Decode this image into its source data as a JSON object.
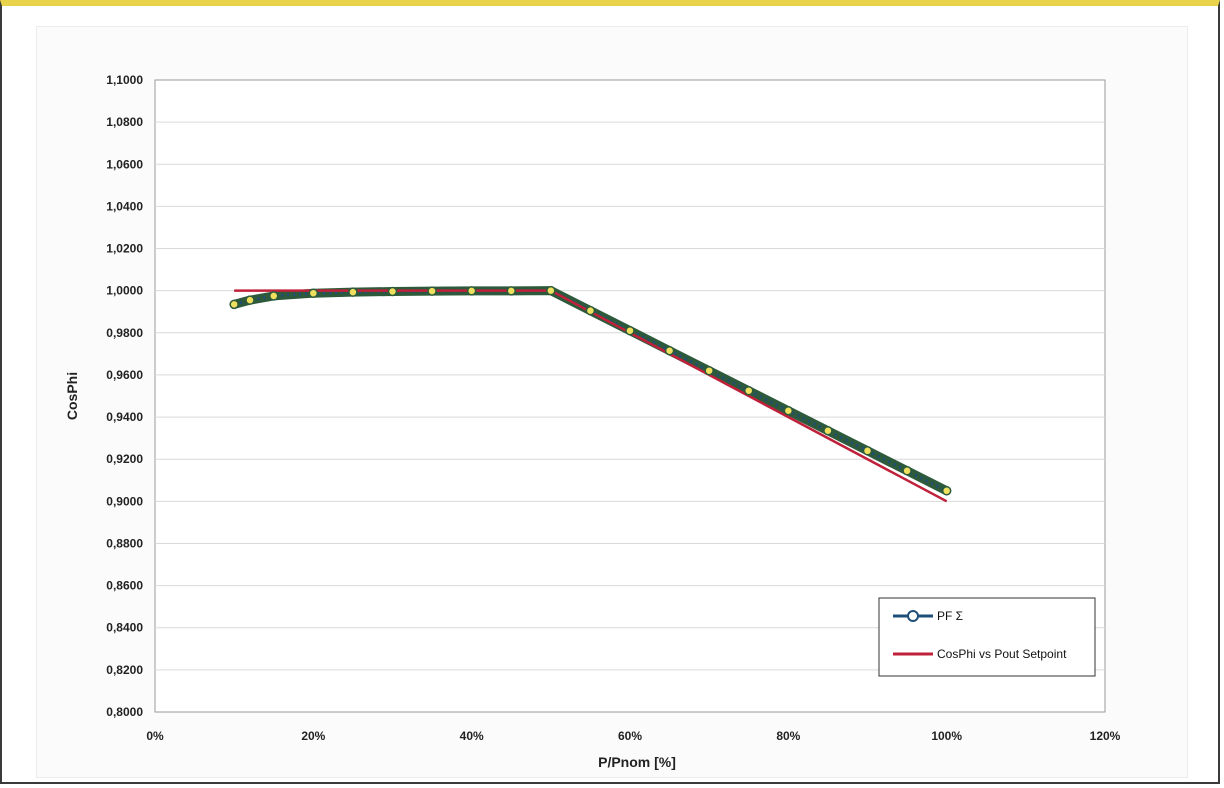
{
  "chart_data": {
    "type": "line",
    "xlabel": "P/Pnom [%]",
    "ylabel": "CosPhi",
    "xlim": [
      0,
      120
    ],
    "ylim": [
      0.8,
      1.1
    ],
    "x_ticks": [
      "0%",
      "20%",
      "40%",
      "60%",
      "80%",
      "100%",
      "120%"
    ],
    "y_ticks": [
      "0,8000",
      "0,8200",
      "0,8400",
      "0,8600",
      "0,8800",
      "0,9000",
      "0,9200",
      "0,9400",
      "0,9600",
      "0,9800",
      "1,0000",
      "1,0200",
      "1,0400",
      "1,0600",
      "1,0800",
      "1,1000"
    ],
    "grid": true,
    "legend_position": "bottom-right",
    "series": [
      {
        "name": "PF Σ",
        "color": "#1f4e79",
        "marker": "circle",
        "marker_fill": "#f0e060",
        "x": [
          10,
          12,
          15,
          20,
          25,
          30,
          35,
          40,
          45,
          50,
          55,
          60,
          65,
          70,
          75,
          80,
          85,
          90,
          95,
          100
        ],
        "y": [
          0.9935,
          0.9955,
          0.9975,
          0.9988,
          0.9993,
          0.9996,
          0.9998,
          0.9999,
          0.9999,
          1.0,
          0.9905,
          0.981,
          0.9715,
          0.962,
          0.9525,
          0.943,
          0.9335,
          0.924,
          0.9145,
          0.905
        ]
      },
      {
        "name": "CosPhi vs Pout Setpoint",
        "color": "#c0203a",
        "marker": "none",
        "x": [
          10,
          50,
          100
        ],
        "y": [
          1.0,
          1.0,
          0.9
        ]
      }
    ]
  }
}
